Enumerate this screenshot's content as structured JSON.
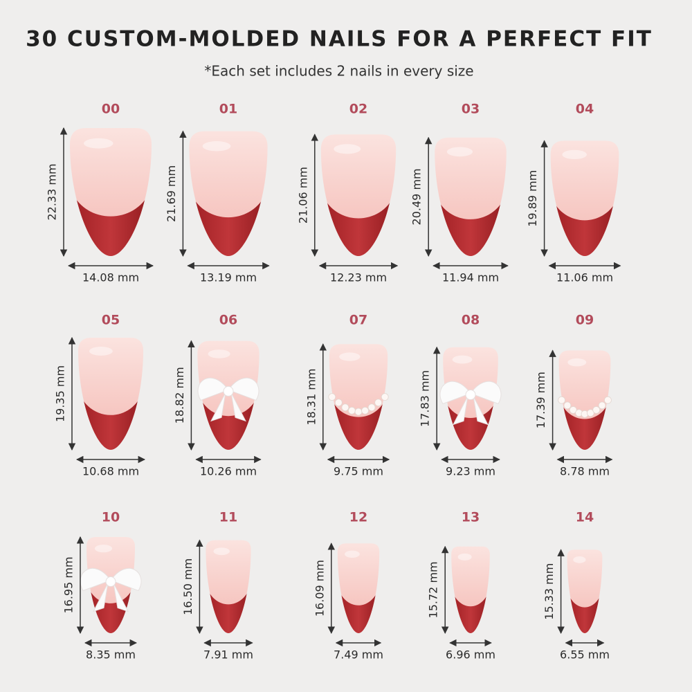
{
  "header": {
    "title": "30 CUSTOM-MOLDED NAILS FOR A PERFECT FIT",
    "subtitle": "*Each set includes 2 nails in every size"
  },
  "nails": [
    {
      "size": "00",
      "height": "22.33 mm",
      "width": "14.08 mm"
    },
    {
      "size": "01",
      "height": "21.69 mm",
      "width": "13.19 mm"
    },
    {
      "size": "02",
      "height": "21.06 mm",
      "width": "12.23 mm"
    },
    {
      "size": "03",
      "height": "20.49 mm",
      "width": "11.94 mm"
    },
    {
      "size": "04",
      "height": "19.89 mm",
      "width": "11.06 mm"
    },
    {
      "size": "05",
      "height": "19.35 mm",
      "width": "10.68 mm"
    },
    {
      "size": "06",
      "height": "18.82 mm",
      "width": "10.26 mm"
    },
    {
      "size": "07",
      "height": "18.31 mm",
      "width": "9.75 mm"
    },
    {
      "size": "08",
      "height": "17.83 mm",
      "width": "9.23 mm"
    },
    {
      "size": "09",
      "height": "17.39 mm",
      "width": "8.78 mm"
    },
    {
      "size": "10",
      "height": "16.95 mm",
      "width": "8.35 mm"
    },
    {
      "size": "11",
      "height": "16.50 mm",
      "width": "7.91 mm"
    },
    {
      "size": "12",
      "height": "16.09 mm",
      "width": "7.49 mm"
    },
    {
      "size": "13",
      "height": "15.72 mm",
      "width": "6.96 mm"
    },
    {
      "size": "14",
      "height": "15.33 mm",
      "width": "6.55 mm"
    }
  ]
}
